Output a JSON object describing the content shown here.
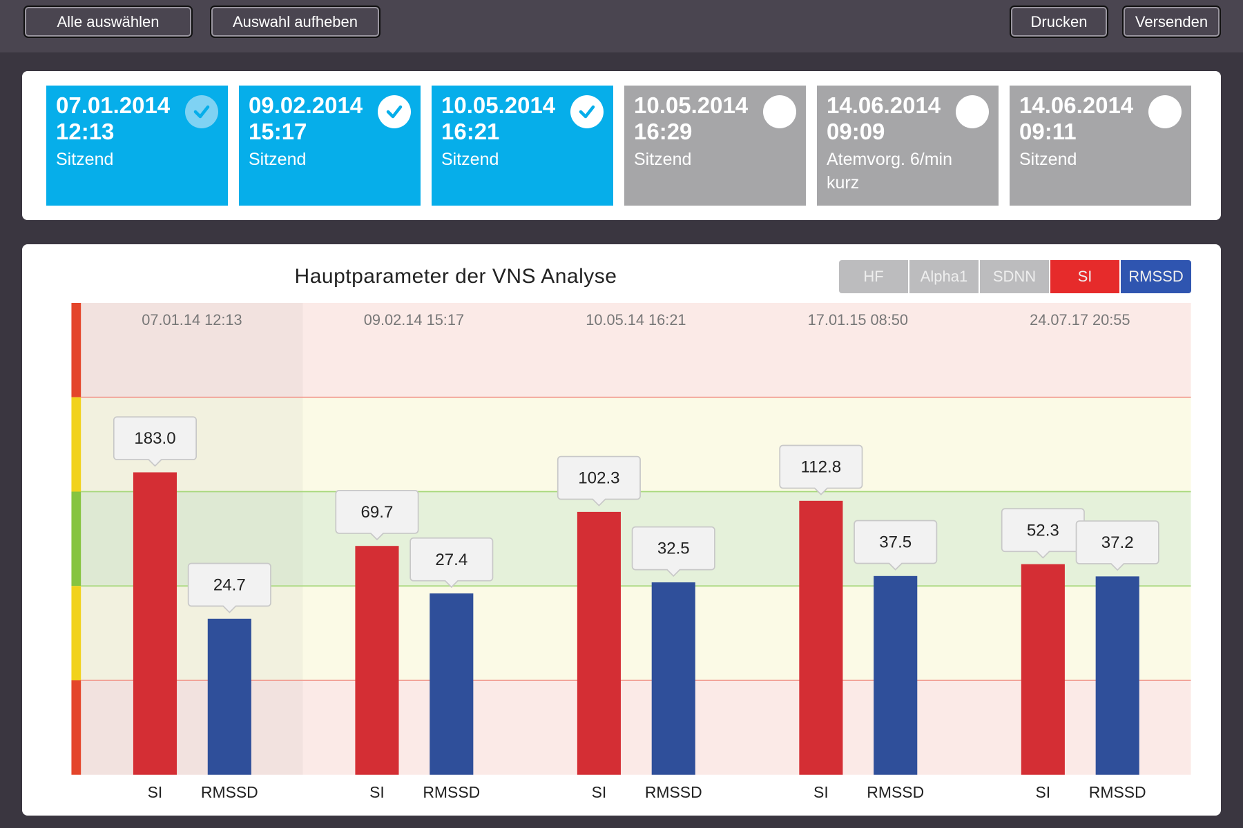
{
  "toolbar": {
    "select_all": "Alle auswählen",
    "deselect": "Auswahl aufheben",
    "print": "Drucken",
    "send": "Versenden"
  },
  "measurements": [
    {
      "date": "07.01.2014",
      "time": "12:13",
      "mode": "Sitzend",
      "selected": true,
      "dim": true
    },
    {
      "date": "09.02.2014",
      "time": "15:17",
      "mode": "Sitzend",
      "selected": true
    },
    {
      "date": "10.05.2014",
      "time": "16:21",
      "mode": "Sitzend",
      "selected": true
    },
    {
      "date": "10.05.2014",
      "time": "16:29",
      "mode": "Sitzend",
      "selected": false
    },
    {
      "date": "14.06.2014",
      "time": "09:09",
      "mode": "Atemvorg. 6/min kurz",
      "selected": false
    },
    {
      "date": "14.06.2014",
      "time": "09:11",
      "mode": "Sitzend",
      "selected": false
    }
  ],
  "colors": {
    "selected": "#06aeea",
    "unselected": "#a6a6a8",
    "si": "#d42e34",
    "rmssd": "#2f4f9a"
  },
  "chart_data": {
    "type": "bar",
    "title": "Hauptparameter der VNS Analyse",
    "toggles": [
      {
        "label": "HF",
        "active": false
      },
      {
        "label": "Alpha1",
        "active": false
      },
      {
        "label": "SDNN",
        "active": false
      },
      {
        "label": "SI",
        "active": true,
        "color": "#e62b2b"
      },
      {
        "label": "RMSSD",
        "active": true,
        "color": "#2f55b0"
      }
    ],
    "categories": [
      "07.01.14 12:13",
      "09.02.14 15:17",
      "10.05.14 16:21",
      "17.01.15 08:50",
      "24.07.17 20:55"
    ],
    "series": [
      {
        "name": "SI",
        "values": [
          183.0,
          69.7,
          102.3,
          112.8,
          52.3
        ]
      },
      {
        "name": "RMSSD",
        "values": [
          24.7,
          27.4,
          32.5,
          37.5,
          37.2
        ]
      }
    ],
    "value_labels": {
      "SI": [
        "183.0",
        "69.7",
        "102.3",
        "112.8",
        "52.3"
      ],
      "RMSSD": [
        "24.7",
        "27.4",
        "32.5",
        "37.5",
        "37.2"
      ]
    },
    "zones": [
      "red",
      "yellow",
      "green",
      "yellow",
      "red"
    ]
  }
}
